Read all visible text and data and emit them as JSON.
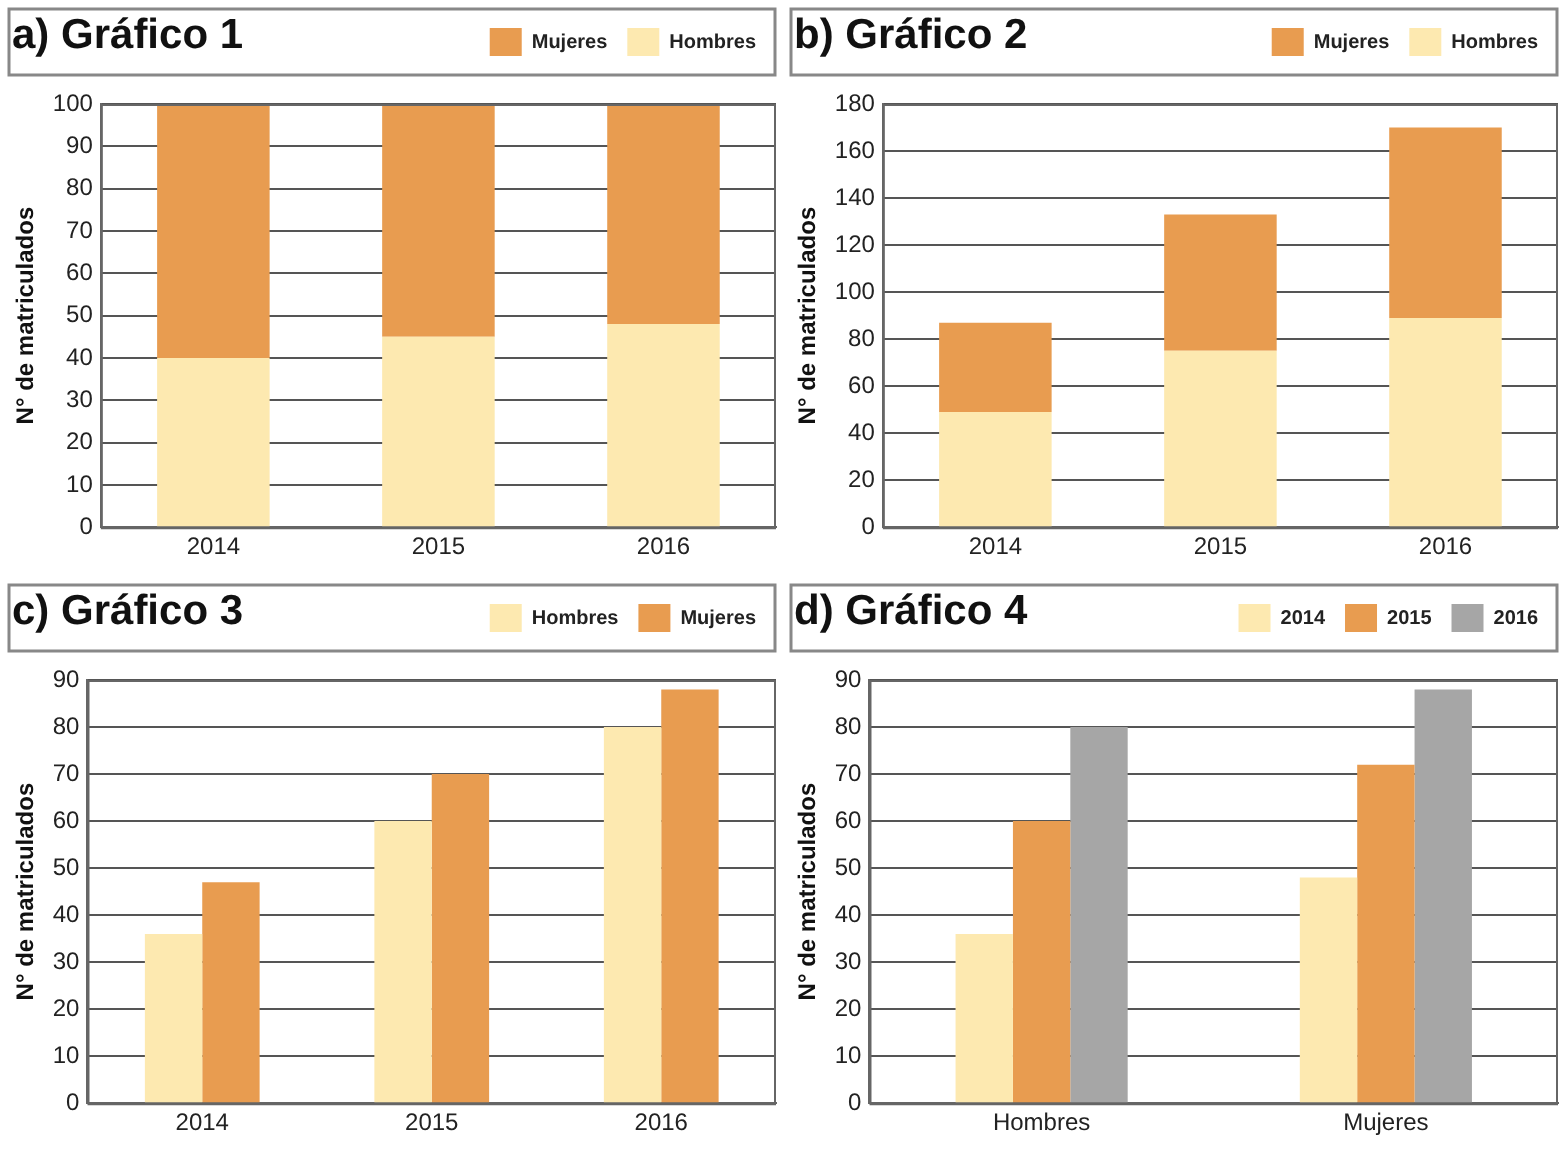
{
  "chart_data": [
    {
      "type": "bar",
      "title": "a) Gráfico 1",
      "ylabel": "N° de matriculados",
      "categories": [
        "2014",
        "2015",
        "2016"
      ],
      "stacked": true,
      "series": [
        {
          "name": "Hombres",
          "color": "#fde9b0",
          "values": [
            40,
            45,
            48
          ]
        },
        {
          "name": "Mujeres",
          "color": "#e89c50",
          "values": [
            60,
            55,
            52
          ]
        }
      ],
      "ylim": [
        0,
        100
      ],
      "yticks": [
        0,
        10,
        20,
        30,
        40,
        50,
        60,
        70,
        80,
        90,
        100
      ],
      "grid": "y",
      "legend": "top right"
    },
    {
      "type": "bar",
      "title": "b) Gráfico 2",
      "ylabel": "N° de matriculados",
      "categories": [
        "2014",
        "2015",
        "2016"
      ],
      "stacked": true,
      "series": [
        {
          "name": "Hombres",
          "color": "#fde9b0",
          "values": [
            49,
            75,
            89
          ]
        },
        {
          "name": "Mujeres",
          "color": "#e89c50",
          "values": [
            38,
            58,
            81
          ]
        }
      ],
      "ylim": [
        0,
        180
      ],
      "yticks": [
        0,
        20,
        40,
        60,
        80,
        100,
        120,
        140,
        160,
        180
      ],
      "grid": "y",
      "legend": "top right"
    },
    {
      "type": "bar",
      "title": "c) Gráfico 3",
      "ylabel": "N° de matriculados",
      "categories": [
        "2014",
        "2015",
        "2016"
      ],
      "series": [
        {
          "name": "Hombres",
          "color": "#fde9b0",
          "values": [
            36,
            60,
            80
          ]
        },
        {
          "name": "Mujeres",
          "color": "#e89c50",
          "values": [
            47,
            70,
            88
          ]
        }
      ],
      "ylim": [
        0,
        90
      ],
      "yticks": [
        0,
        10,
        20,
        30,
        40,
        50,
        60,
        70,
        80,
        90
      ],
      "grid": "y",
      "legend": "top right"
    },
    {
      "type": "bar",
      "title": "d) Gráfico 4",
      "ylabel": "N° de matriculados",
      "categories": [
        "Hombres",
        "Mujeres"
      ],
      "series": [
        {
          "name": "2014",
          "color": "#fde9b0",
          "values": [
            36,
            48
          ]
        },
        {
          "name": "2015",
          "color": "#e89c50",
          "values": [
            60,
            72
          ]
        },
        {
          "name": "2016",
          "color": "#a6a6a6",
          "values": [
            80,
            88
          ]
        }
      ],
      "ylim": [
        0,
        90
      ],
      "yticks": [
        0,
        10,
        20,
        30,
        40,
        50,
        60,
        70,
        80,
        90
      ],
      "grid": "y",
      "legend": "top right"
    }
  ]
}
